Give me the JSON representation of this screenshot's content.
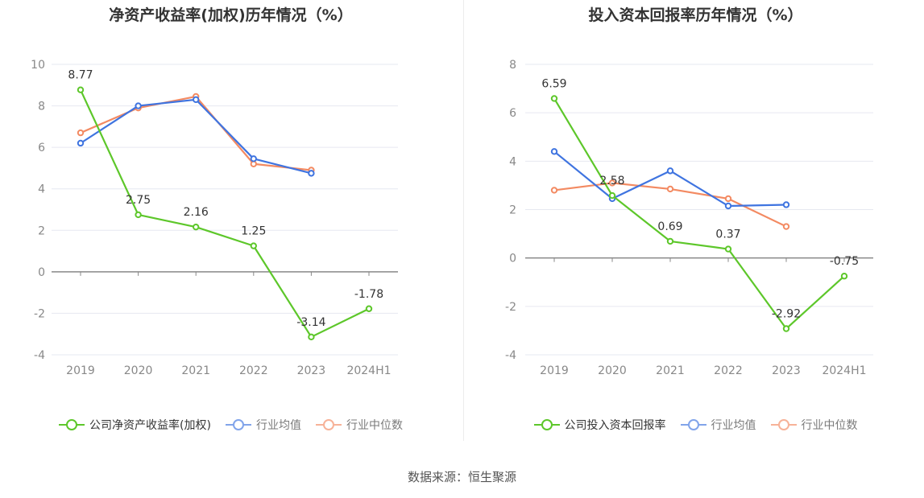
{
  "colors": {
    "company": "#5dc72a",
    "industry_avg": "#3f74e0",
    "industry_median": "#f38a62"
  },
  "source": "数据来源：恒生聚源",
  "chart_data": [
    {
      "type": "line",
      "title": "净资产收益率(加权)历年情况（%）",
      "categories": [
        "2019",
        "2020",
        "2021",
        "2022",
        "2023",
        "2024H1"
      ],
      "ylim": [
        -4,
        10
      ],
      "yticks": [
        "10",
        "8",
        "6",
        "4",
        "2",
        "0",
        "-2",
        "-4"
      ],
      "ytick_values": [
        10,
        8,
        6,
        4,
        2,
        0,
        -2,
        -4
      ],
      "grid": true,
      "legend_position": "bottom",
      "series": [
        {
          "name": "公司净资产收益率(加权)",
          "key": "company",
          "values": [
            8.77,
            2.75,
            2.16,
            1.25,
            -3.14,
            -1.78
          ],
          "labels": [
            "8.77",
            "2.75",
            "2.16",
            "1.25",
            "-3.14",
            "-1.78"
          ]
        },
        {
          "name": "行业均值",
          "key": "industry_avg",
          "values": [
            6.2,
            8.0,
            8.3,
            5.45,
            4.75,
            null
          ]
        },
        {
          "name": "行业中位数",
          "key": "industry_median",
          "values": [
            6.7,
            7.9,
            8.45,
            5.2,
            4.9,
            null
          ]
        }
      ]
    },
    {
      "type": "line",
      "title": "投入资本回报率历年情况（%）",
      "categories": [
        "2019",
        "2020",
        "2021",
        "2022",
        "2023",
        "2024H1"
      ],
      "ylim": [
        -4,
        8
      ],
      "yticks": [
        "8",
        "6",
        "4",
        "2",
        "0",
        "-2",
        "-4"
      ],
      "ytick_values": [
        8,
        6,
        4,
        2,
        0,
        -2,
        -4
      ],
      "grid": true,
      "legend_position": "bottom",
      "series": [
        {
          "name": "公司投入资本回报率",
          "key": "company",
          "values": [
            6.59,
            2.58,
            0.69,
            0.37,
            -2.92,
            -0.75
          ],
          "labels": [
            "6.59",
            "2.58",
            "0.69",
            "0.37",
            "-2.92",
            "-0.75"
          ]
        },
        {
          "name": "行业均值",
          "key": "industry_avg",
          "values": [
            4.4,
            2.45,
            3.6,
            2.15,
            2.2,
            null
          ]
        },
        {
          "name": "行业中位数",
          "key": "industry_median",
          "values": [
            2.8,
            3.1,
            2.85,
            2.45,
            1.3,
            null
          ]
        }
      ]
    }
  ]
}
